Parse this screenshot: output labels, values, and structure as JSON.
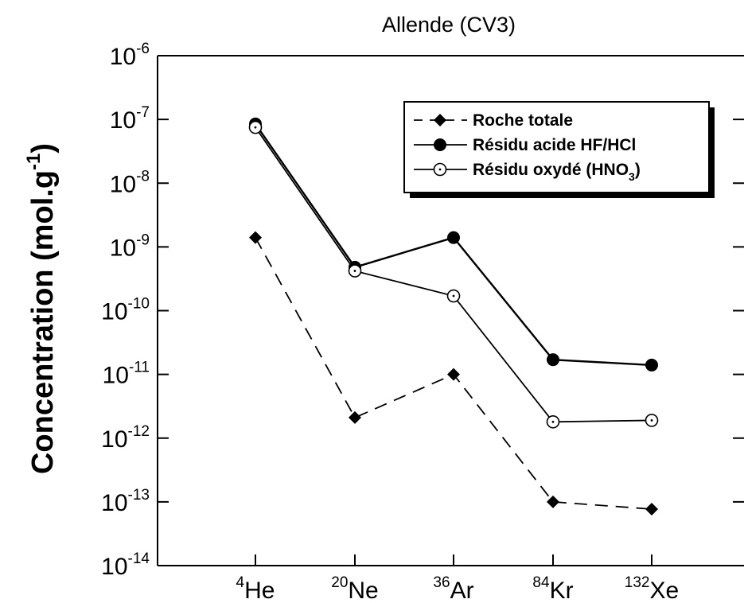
{
  "chart_data": {
    "type": "line",
    "title": "Allende (CV3)",
    "ylabel": {
      "main": "Concentration  (mol.g",
      "sup": "-1",
      "close": ")"
    },
    "y_scale": "log",
    "ylim": [
      1e-14,
      1e-06
    ],
    "y_ticks": [
      {
        "base": "10",
        "exp": "-14"
      },
      {
        "base": "10",
        "exp": "-13"
      },
      {
        "base": "10",
        "exp": "-12"
      },
      {
        "base": "10",
        "exp": "-11"
      },
      {
        "base": "10",
        "exp": "-10"
      },
      {
        "base": "10",
        "exp": "-9"
      },
      {
        "base": "10",
        "exp": "-8"
      },
      {
        "base": "10",
        "exp": "-7"
      },
      {
        "base": "10",
        "exp": "-6"
      }
    ],
    "categories": [
      {
        "mass": "4",
        "element": "He"
      },
      {
        "mass": "20",
        "element": "Ne"
      },
      {
        "mass": "36",
        "element": "Ar"
      },
      {
        "mass": "84",
        "element": "Kr"
      },
      {
        "mass": "132",
        "element": "Xe"
      }
    ],
    "series": [
      {
        "name": "Roche  totale",
        "marker": "filled-diamond",
        "line_style": "dashed",
        "values": [
          1.4e-09,
          2.1e-12,
          1e-11,
          1e-13,
          7.7e-14
        ]
      },
      {
        "name": "Résidu  acide  HF/HCl",
        "marker": "filled-circle",
        "line_style": "solid",
        "values": [
          8.5e-08,
          4.8e-10,
          1.4e-09,
          1.7e-11,
          1.4e-11
        ]
      },
      {
        "name": "Résidu  oxydé  (HNO",
        "name_sub": "3",
        "name_close": ")",
        "marker": "open-circle-dot",
        "line_style": "solid",
        "values": [
          7.5e-08,
          4.2e-10,
          1.7e-10,
          1.8e-12,
          1.9e-12
        ]
      }
    ],
    "grid": false,
    "legend_position": "top-right",
    "colors": {
      "line": "#000000",
      "background": "#ffffff"
    }
  }
}
